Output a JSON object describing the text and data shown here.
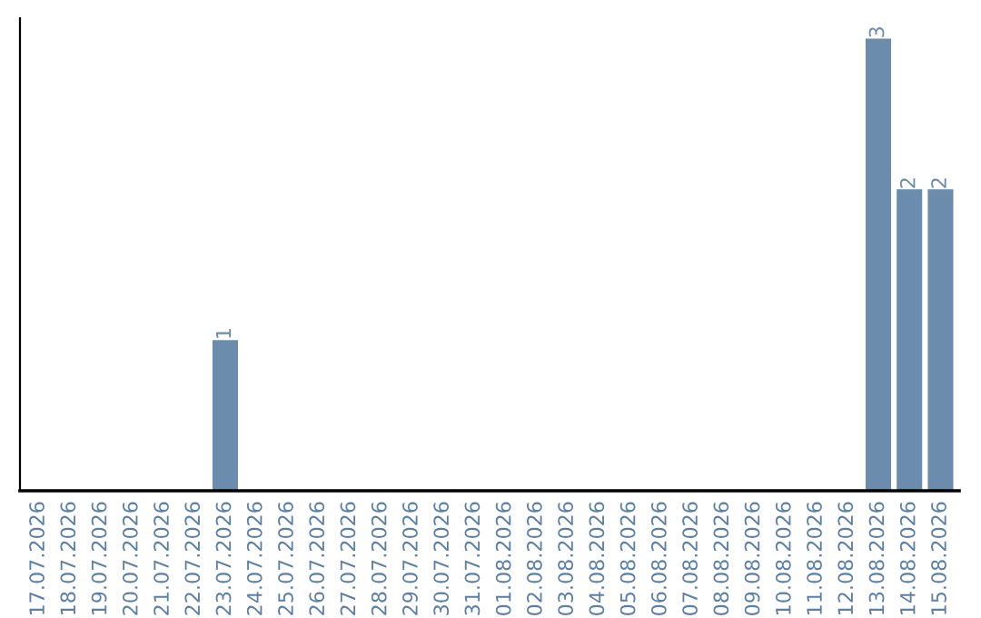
{
  "chart_data": {
    "type": "bar",
    "categories": [
      "17.07.2026",
      "18.07.2026",
      "19.07.2026",
      "20.07.2026",
      "21.07.2026",
      "22.07.2026",
      "23.07.2026",
      "24.07.2026",
      "25.07.2026",
      "26.07.2026",
      "27.07.2026",
      "28.07.2026",
      "29.07.2026",
      "30.07.2026",
      "31.07.2026",
      "01.08.2026",
      "02.08.2026",
      "03.08.2026",
      "04.08.2026",
      "05.08.2026",
      "06.08.2026",
      "07.08.2026",
      "08.08.2026",
      "09.08.2026",
      "10.08.2026",
      "11.08.2026",
      "12.08.2026",
      "13.08.2026",
      "14.08.2026",
      "15.08.2026"
    ],
    "values": [
      0,
      0,
      0,
      0,
      0,
      0,
      1,
      0,
      0,
      0,
      0,
      0,
      0,
      0,
      0,
      0,
      0,
      0,
      0,
      0,
      0,
      0,
      0,
      0,
      0,
      0,
      0,
      3,
      2,
      2
    ],
    "value_labels": [
      null,
      null,
      null,
      null,
      null,
      null,
      "1",
      null,
      null,
      null,
      null,
      null,
      null,
      null,
      null,
      null,
      null,
      null,
      null,
      null,
      null,
      null,
      null,
      null,
      null,
      null,
      null,
      "3",
      "2",
      "2"
    ],
    "color": "#6b8cad",
    "grid": false,
    "legend": false
  }
}
